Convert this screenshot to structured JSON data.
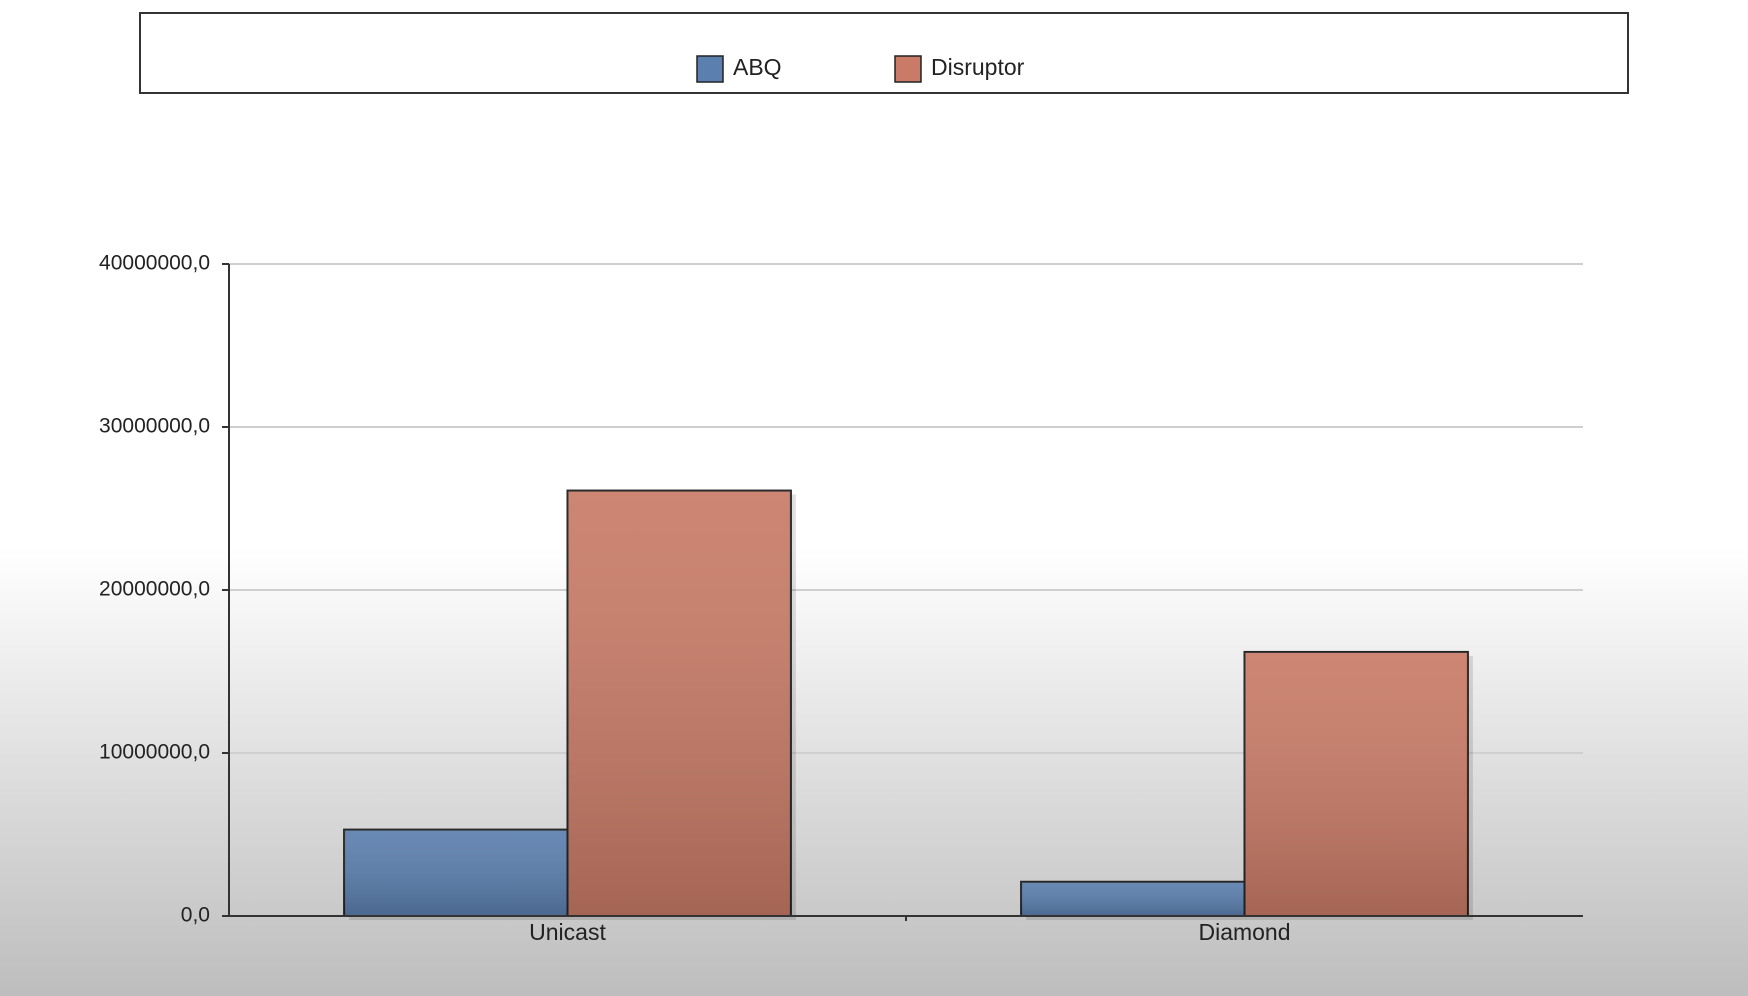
{
  "chart_data": {
    "type": "bar",
    "categories": [
      "Unicast",
      "Diamond"
    ],
    "series": [
      {
        "name": "ABQ",
        "color": "#5b7fae",
        "values": [
          5300000,
          2100000
        ]
      },
      {
        "name": "Disruptor",
        "color": "#c97b67",
        "values": [
          26100000,
          16200000
        ]
      }
    ],
    "ylim": [
      0,
      40000000
    ],
    "yticks": [
      {
        "value": 0,
        "label": "0,0"
      },
      {
        "value": 10000000,
        "label": "10000000,0"
      },
      {
        "value": 20000000,
        "label": "20000000,0"
      },
      {
        "value": 30000000,
        "label": "30000000,0"
      },
      {
        "value": 40000000,
        "label": "40000000,0"
      }
    ],
    "grid": true,
    "legend": "top"
  }
}
